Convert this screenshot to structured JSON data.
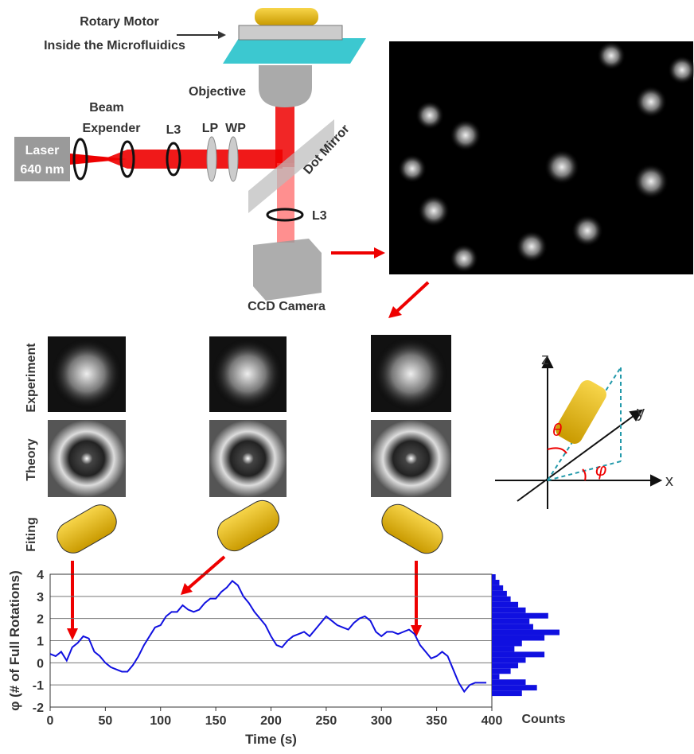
{
  "setup": {
    "motor_1": "Rotary Motor",
    "motor_2": "Inside the Microfluidics",
    "objective": "Objective",
    "beam_1": "Beam",
    "beam_2": "Expender",
    "lens_1": "L3",
    "lp": "LP",
    "wp": "WP",
    "laser_1": "Laser",
    "laser_2": "640 nm",
    "mirror": "Dot Mirror",
    "lens_2": "L3",
    "camera": "CCD Camera"
  },
  "rows": [
    "Experiment",
    "Theory",
    "Fiting"
  ],
  "axes_diagram": {
    "z": "z",
    "y": "y",
    "x": "x",
    "theta": "θ",
    "phi": "φ"
  },
  "chart_data": {
    "type": "line",
    "y_label": "φ (# of Full Rotations)",
    "x_label": "Time (s)",
    "xlim": [
      0,
      400
    ],
    "ylim": [
      -2,
      4
    ],
    "xticks": [
      0,
      50,
      100,
      150,
      200,
      250,
      300,
      350,
      400
    ],
    "yticks": [
      -2,
      -1,
      0,
      1,
      2,
      3,
      4
    ],
    "grid": true,
    "x": [
      0,
      5,
      10,
      15,
      20,
      25,
      30,
      35,
      40,
      45,
      50,
      55,
      60,
      65,
      70,
      75,
      80,
      85,
      90,
      95,
      100,
      105,
      110,
      115,
      120,
      125,
      130,
      135,
      140,
      145,
      150,
      155,
      160,
      165,
      170,
      175,
      180,
      185,
      190,
      195,
      200,
      205,
      210,
      215,
      220,
      225,
      230,
      235,
      240,
      245,
      250,
      255,
      260,
      265,
      270,
      275,
      280,
      285,
      290,
      295,
      300,
      305,
      310,
      315,
      320,
      325,
      330,
      335,
      340,
      345,
      350,
      355,
      360,
      365,
      370,
      375,
      380,
      385,
      390,
      395
    ],
    "series": [
      {
        "color": "#1010e0",
        "values": [
          0.4,
          0.3,
          0.5,
          0.1,
          0.7,
          0.9,
          1.2,
          1.1,
          0.5,
          0.3,
          0.0,
          -0.2,
          -0.3,
          -0.4,
          -0.4,
          -0.1,
          0.3,
          0.8,
          1.2,
          1.6,
          1.7,
          2.1,
          2.3,
          2.3,
          2.6,
          2.4,
          2.3,
          2.4,
          2.7,
          2.9,
          2.9,
          3.2,
          3.4,
          3.7,
          3.5,
          3.0,
          2.7,
          2.3,
          2.0,
          1.7,
          1.2,
          0.8,
          0.7,
          1.0,
          1.2,
          1.3,
          1.4,
          1.2,
          1.5,
          1.8,
          2.1,
          1.9,
          1.7,
          1.6,
          1.5,
          1.8,
          2.0,
          2.1,
          1.9,
          1.4,
          1.2,
          1.4,
          1.4,
          1.3,
          1.4,
          1.5,
          1.3,
          0.8,
          0.5,
          0.2,
          0.3,
          0.5,
          0.3,
          -0.3,
          -0.9,
          -1.3,
          -1.0,
          -0.9,
          -0.9,
          -0.9
        ]
      }
    ],
    "histogram": {
      "label": "Counts",
      "color": "#1010e0",
      "bins": [
        -1.5,
        -1.25,
        -1,
        -0.75,
        -0.5,
        -0.25,
        0,
        0.25,
        0.5,
        0.75,
        1,
        1.25,
        1.5,
        1.75,
        2,
        2.25,
        2.5,
        2.75,
        3,
        3.25,
        3.5,
        3.75,
        4
      ],
      "counts": [
        40,
        60,
        45,
        10,
        25,
        35,
        45,
        70,
        30,
        40,
        70,
        90,
        55,
        50,
        75,
        45,
        35,
        25,
        20,
        15,
        10,
        5
      ]
    }
  }
}
